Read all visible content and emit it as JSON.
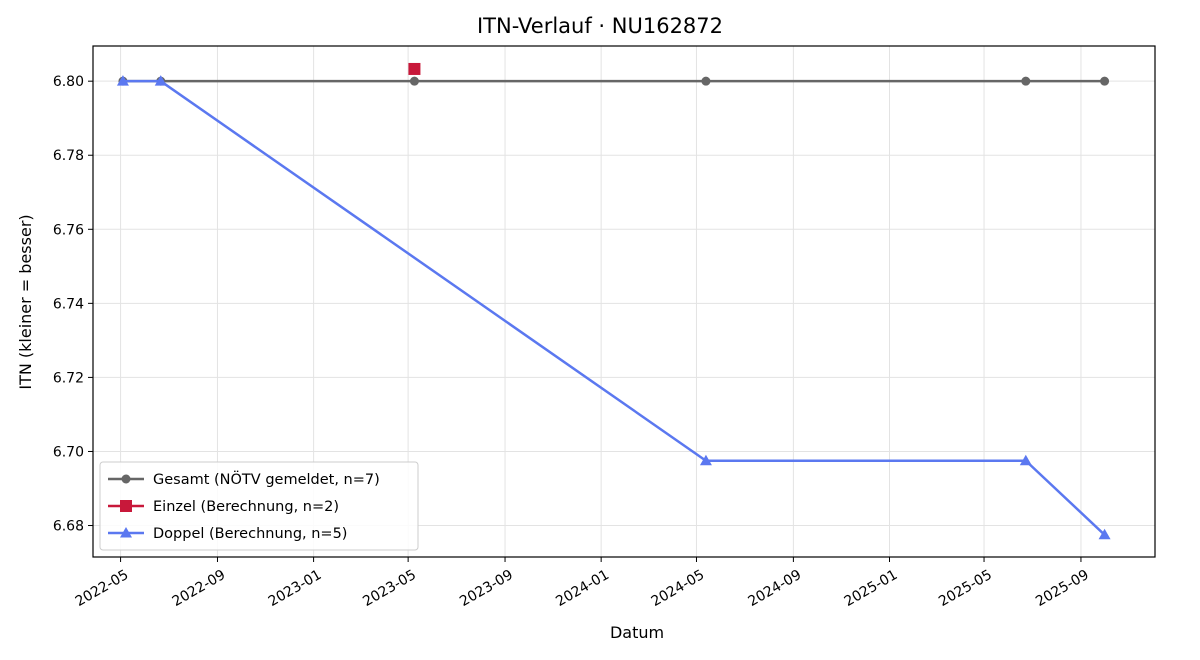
{
  "chart_data": {
    "type": "line",
    "title": "ITN-Verlauf · NU162872",
    "xlabel": "Datum",
    "ylabel": "ITN  (kleiner = besser)",
    "x_ticks": [
      "2022-05",
      "2022-09",
      "2023-01",
      "2023-05",
      "2023-09",
      "2024-01",
      "2024-05",
      "2024-09",
      "2025-01",
      "2025-05",
      "2025-09"
    ],
    "y_ticks": [
      "6.68",
      "6.70",
      "6.72",
      "6.74",
      "6.76",
      "6.78",
      "6.80"
    ],
    "xlim": [
      "2022-03-27",
      "2025-12-04"
    ],
    "ylim": [
      6.6715,
      6.8095
    ],
    "grid": true,
    "legend_position": "lower-left",
    "series": [
      {
        "name": "Gesamt (NÖTV gemeldet, n=7)",
        "color": "#666666",
        "marker": "circle",
        "points": [
          {
            "x": "2022-05-04",
            "y": 6.8
          },
          {
            "x": "2022-06-21",
            "y": 6.8
          },
          {
            "x": "2023-05-09",
            "y": 6.8
          },
          {
            "x": "2024-05-13",
            "y": 6.8
          },
          {
            "x": "2025-06-23",
            "y": 6.8
          },
          {
            "x": "2025-10-01",
            "y": 6.8
          }
        ]
      },
      {
        "name": "Einzel (Berechnung, n=2)",
        "color": "#c8183a",
        "marker": "square",
        "points": [
          {
            "x": "2023-05-09",
            "y": 6.8033
          }
        ]
      },
      {
        "name": "Doppel (Berechnung, n=5)",
        "color": "#5b78f0",
        "marker": "triangle",
        "points": [
          {
            "x": "2022-05-04",
            "y": 6.8
          },
          {
            "x": "2022-06-21",
            "y": 6.8
          },
          {
            "x": "2024-05-13",
            "y": 6.6975
          },
          {
            "x": "2025-06-23",
            "y": 6.6975
          },
          {
            "x": "2025-10-01",
            "y": 6.6775
          }
        ]
      }
    ]
  }
}
